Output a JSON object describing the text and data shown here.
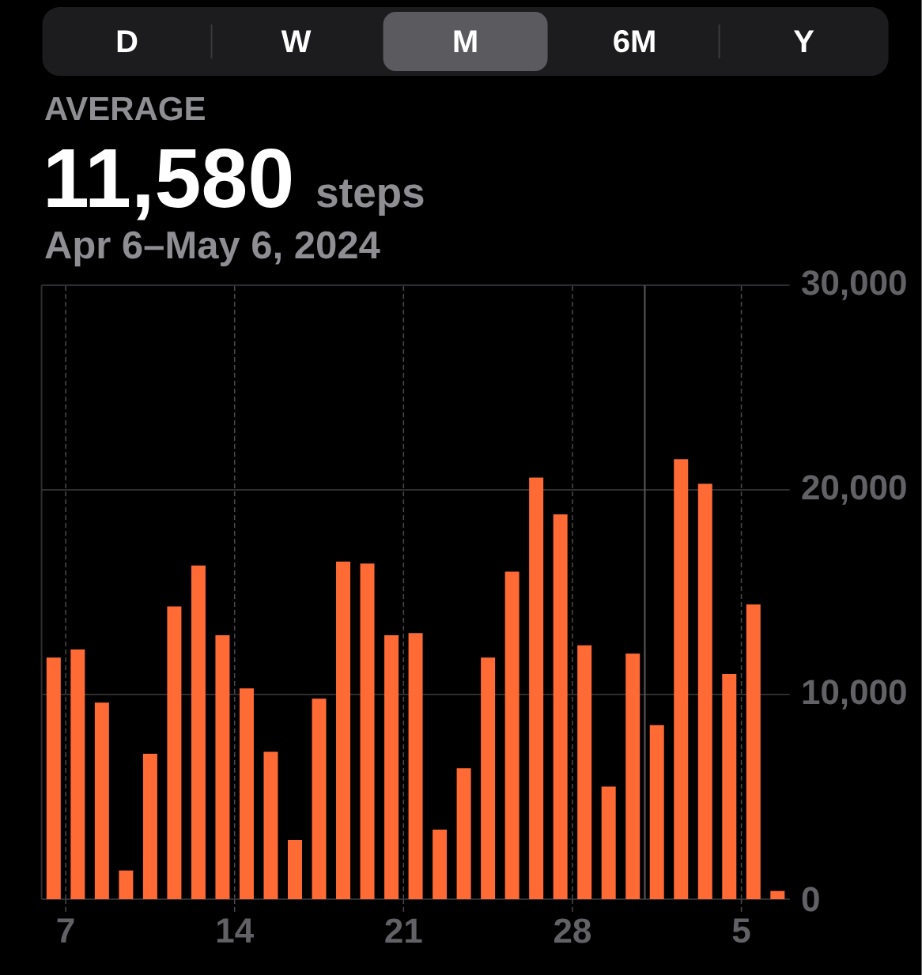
{
  "chart_data": {
    "type": "bar",
    "title": "AVERAGE",
    "subtitle": "Apr 6–May 6, 2024",
    "annotations": [
      "11,580",
      "steps",
      "D",
      "W",
      "M",
      "6M",
      "Y"
    ],
    "x": [
      "2024-04-06T12:00",
      "2024-04-07T12:00",
      "2024-04-08T12:00",
      "2024-04-09T12:00",
      "2024-04-10T12:00",
      "2024-04-11T12:00",
      "2024-04-12T12:00",
      "2024-04-13T12:00",
      "2024-04-14T12:00",
      "2024-04-15T12:00",
      "2024-04-16T12:00",
      "2024-04-17T12:00",
      "2024-04-18T12:00",
      "2024-04-19T12:00",
      "2024-04-20T12:00",
      "2024-04-21T12:00",
      "2024-04-22T12:00",
      "2024-04-23T12:00",
      "2024-04-24T12:00",
      "2024-04-25T12:00",
      "2024-04-26T12:00",
      "2024-04-27T12:00",
      "2024-04-28T12:00",
      "2024-04-29T12:00",
      "2024-04-30T12:00",
      "2024-05-01T12:00",
      "2024-05-02T12:00",
      "2024-05-03T12:00",
      "2024-05-04T12:00",
      "2024-05-05T12:00",
      "2024-05-06T12:00"
    ],
    "values": [
      11800,
      12200,
      9600,
      1400,
      7100,
      14300,
      16300,
      12900,
      10300,
      7200,
      2900,
      9800,
      16500,
      16400,
      12900,
      13000,
      3400,
      6400,
      11800,
      16000,
      20600,
      18800,
      12400,
      5500,
      12000,
      8500,
      21500,
      20300,
      11000,
      14400,
      400
    ],
    "color": "#ff6a35",
    "xlim": [
      "2024-04-06",
      "2024-05-07"
    ],
    "xticks": [
      {
        "value": "2024-04-07",
        "label": "7"
      },
      {
        "value": "2024-04-14",
        "label": "14"
      },
      {
        "value": "2024-04-21",
        "label": "21"
      },
      {
        "value": "2024-04-28",
        "label": "28"
      },
      {
        "value": "2024-05-05",
        "label": "5"
      }
    ],
    "ylim": [
      0,
      30000
    ],
    "yticks": [
      0,
      {
        "value": 10000,
        "label": "10,000"
      },
      {
        "value": 20000,
        "label": "20,000"
      },
      {
        "value": 30000,
        "label": "30,000"
      }
    ],
    "grid": true,
    "ref_lines": [
      {
        "axis": "x",
        "value": "2024-05-01",
        "color": "#5a5a5e",
        "line_style": "solid"
      }
    ]
  }
}
